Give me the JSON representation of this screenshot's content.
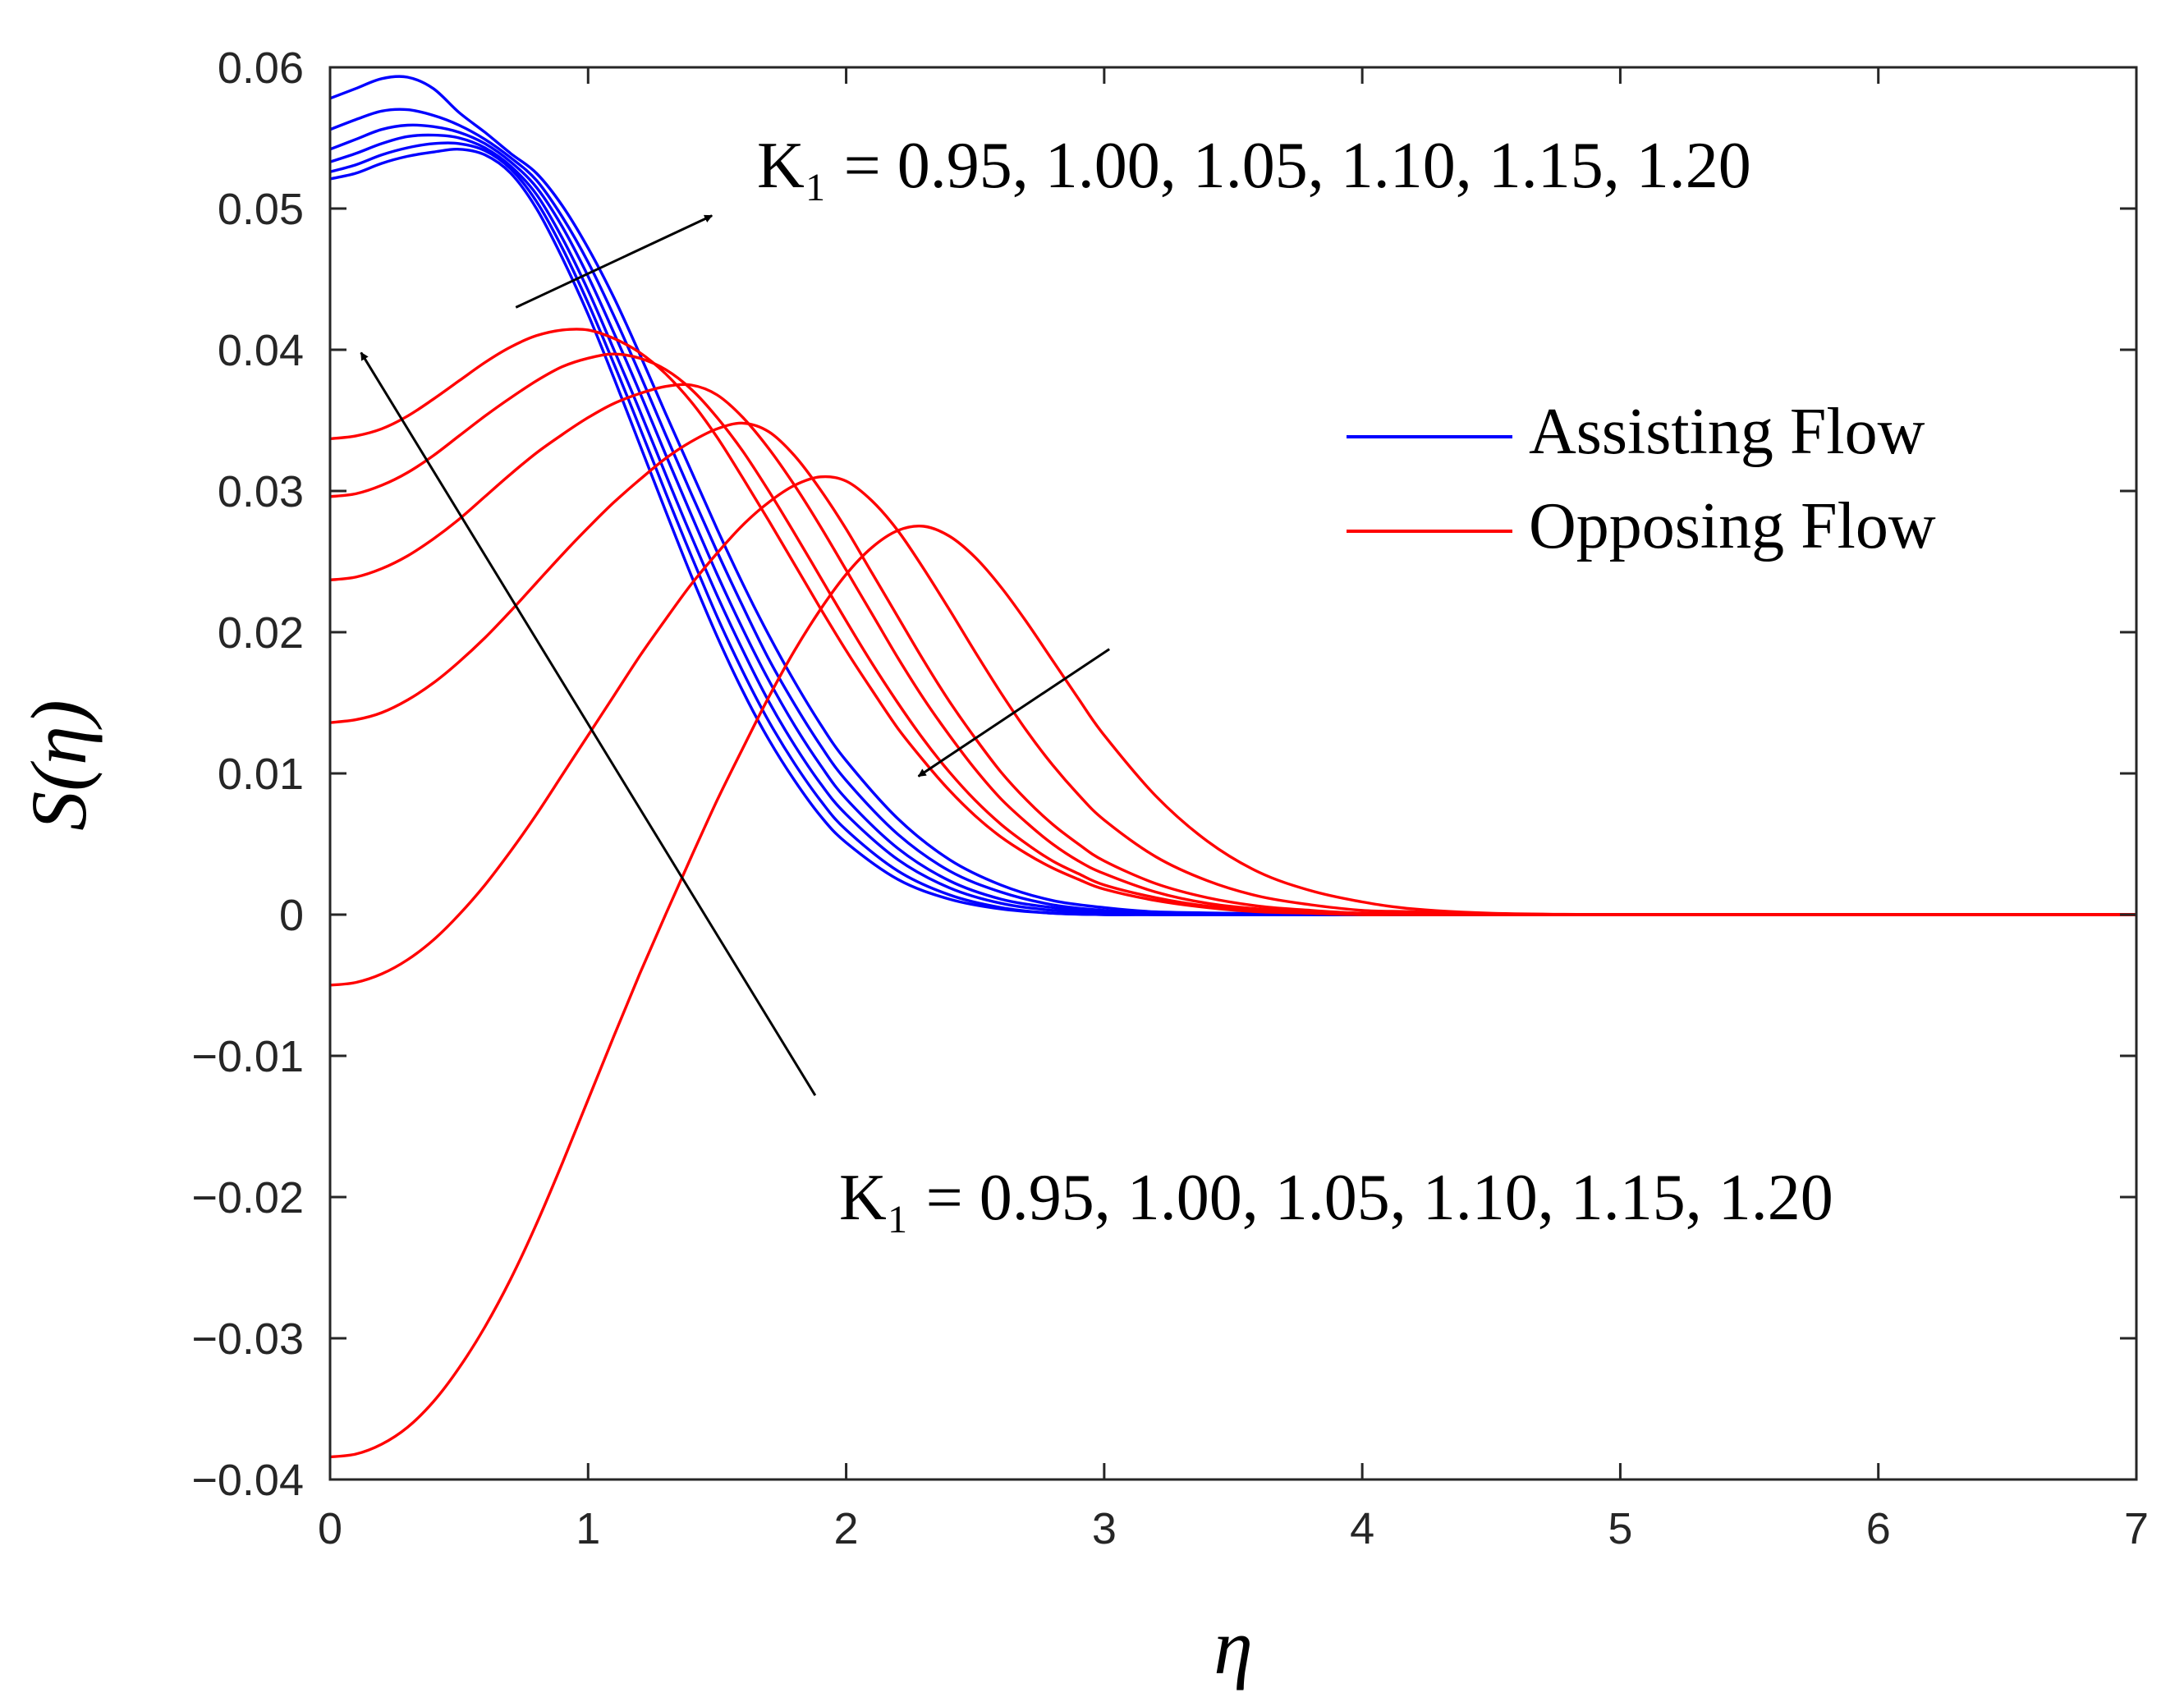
{
  "chart_data": {
    "type": "line",
    "xlabel": "η",
    "ylabel": "S(η)",
    "xlim": [
      0,
      7
    ],
    "ylim": [
      -0.04,
      0.06
    ],
    "xticks": [
      0,
      1,
      2,
      3,
      4,
      5,
      6,
      7
    ],
    "xtick_labels": [
      "0",
      "1",
      "2",
      "3",
      "4",
      "5",
      "6",
      "7"
    ],
    "yticks": [
      0.06,
      0.05,
      0.04,
      0.03,
      0.02,
      0.01,
      0,
      -0.01,
      -0.02,
      -0.03,
      -0.04
    ],
    "ytick_labels": [
      "0.06",
      "0.05",
      "0.04",
      "0.03",
      "0.02",
      "0.01",
      "0",
      "−0.01",
      "−0.02",
      "−0.03",
      "−0.04"
    ],
    "grid": false,
    "legend_position": "right",
    "legend": [
      {
        "label": "Assisting Flow",
        "color": "#0000ff"
      },
      {
        "label": "Opposing Flow",
        "color": "#ff0000"
      }
    ],
    "annotations": [
      {
        "text": "K₁ = 0.95, 1.00, 1.05, 1.10, 1.15, 1.20",
        "arrow_from": [
          0.72,
          0.043
        ],
        "arrow_to": [
          1.48,
          0.0495
        ],
        "refers_to": "Assisting Flow"
      },
      {
        "text": "K₁ = 0.95, 1.00, 1.05, 1.10, 1.15, 1.20",
        "arrow_from": [
          1.88,
          -0.0128
        ],
        "arrow_to": [
          0.12,
          0.0398
        ],
        "refers_to": "Opposing Flow"
      },
      {
        "text": "",
        "arrow_from": [
          3.02,
          0.0188
        ],
        "arrow_to": [
          2.28,
          0.0098
        ],
        "refers_to": "Opposing Flow"
      }
    ],
    "series": [
      {
        "name": "Assisting Flow, K1 = 0.95",
        "group": "assisting",
        "color": "#0000ff",
        "x": [
          0,
          0.1,
          0.2,
          0.3,
          0.4,
          0.5,
          0.6,
          0.7,
          0.8,
          0.9,
          1.0,
          1.1,
          1.2,
          1.3,
          1.4,
          1.5,
          1.6,
          1.7,
          1.8,
          1.9,
          2.0,
          2.2,
          2.4,
          2.6,
          2.8,
          3.0,
          3.2,
          3.5,
          4.0,
          4.5,
          5.0,
          6.0,
          7.0
        ],
        "y": [
          0.0521,
          0.0525,
          0.0532,
          0.0537,
          0.054,
          0.0542,
          0.0538,
          0.0525,
          0.05,
          0.0465,
          0.0425,
          0.038,
          0.0333,
          0.0286,
          0.024,
          0.0197,
          0.0158,
          0.0124,
          0.0095,
          0.007,
          0.0051,
          0.0025,
          0.0011,
          0.0004,
          0.0001,
          0,
          0,
          0,
          0,
          0,
          0,
          0,
          0
        ]
      },
      {
        "name": "Assisting Flow, K1 = 1.00",
        "group": "assisting",
        "color": "#0000ff",
        "x": [
          0,
          0.1,
          0.2,
          0.3,
          0.4,
          0.5,
          0.6,
          0.7,
          0.8,
          0.9,
          1.0,
          1.1,
          1.2,
          1.3,
          1.4,
          1.5,
          1.6,
          1.7,
          1.8,
          1.9,
          2.0,
          2.2,
          2.4,
          2.6,
          2.8,
          3.0,
          3.2,
          3.5,
          4.0,
          4.5,
          5.0,
          6.0,
          7.0
        ],
        "y": [
          0.0526,
          0.0531,
          0.0538,
          0.0543,
          0.0546,
          0.0546,
          0.0541,
          0.0528,
          0.0505,
          0.0472,
          0.0433,
          0.039,
          0.0345,
          0.0299,
          0.0254,
          0.0211,
          0.0172,
          0.0137,
          0.0107,
          0.0081,
          0.006,
          0.0031,
          0.0014,
          0.0005,
          0.0001,
          0,
          0,
          0,
          0,
          0,
          0,
          0,
          0
        ]
      },
      {
        "name": "Assisting Flow, K1 = 1.05",
        "group": "assisting",
        "color": "#0000ff",
        "x": [
          0,
          0.1,
          0.2,
          0.3,
          0.4,
          0.5,
          0.6,
          0.7,
          0.8,
          0.9,
          1.0,
          1.1,
          1.2,
          1.3,
          1.4,
          1.5,
          1.6,
          1.7,
          1.8,
          1.9,
          2.0,
          2.2,
          2.4,
          2.6,
          2.8,
          3.0,
          3.2,
          3.5,
          4.0,
          4.5,
          5.0,
          6.0,
          7.0
        ],
        "y": [
          0.0533,
          0.0539,
          0.0546,
          0.0551,
          0.0552,
          0.055,
          0.0543,
          0.053,
          0.051,
          0.0479,
          0.0442,
          0.04,
          0.0357,
          0.0312,
          0.0268,
          0.0226,
          0.0187,
          0.0151,
          0.012,
          0.0093,
          0.0071,
          0.0039,
          0.0019,
          0.0008,
          0.0003,
          0.0001,
          0,
          0,
          0,
          0,
          0,
          0,
          0
        ]
      },
      {
        "name": "Assisting Flow, K1 = 1.10",
        "group": "assisting",
        "color": "#0000ff",
        "x": [
          0,
          0.1,
          0.2,
          0.3,
          0.4,
          0.5,
          0.6,
          0.7,
          0.8,
          0.9,
          1.0,
          1.1,
          1.2,
          1.3,
          1.4,
          1.5,
          1.6,
          1.7,
          1.8,
          1.9,
          2.0,
          2.2,
          2.4,
          2.6,
          2.8,
          3.0,
          3.2,
          3.5,
          4.0,
          4.5,
          5.0,
          6.0,
          7.0
        ],
        "y": [
          0.0542,
          0.0549,
          0.0556,
          0.0559,
          0.0558,
          0.0554,
          0.0546,
          0.0533,
          0.0515,
          0.0487,
          0.0452,
          0.0412,
          0.037,
          0.0326,
          0.0283,
          0.0241,
          0.0202,
          0.0166,
          0.0134,
          0.0106,
          0.0082,
          0.0047,
          0.0024,
          0.0011,
          0.0005,
          0.0002,
          0.0001,
          0,
          0,
          0,
          0,
          0,
          0
        ]
      },
      {
        "name": "Assisting Flow, K1 = 1.15",
        "group": "assisting",
        "color": "#0000ff",
        "x": [
          0,
          0.1,
          0.2,
          0.3,
          0.4,
          0.5,
          0.6,
          0.7,
          0.8,
          0.9,
          1.0,
          1.1,
          1.2,
          1.3,
          1.4,
          1.5,
          1.6,
          1.7,
          1.8,
          1.9,
          2.0,
          2.2,
          2.4,
          2.6,
          2.8,
          3.0,
          3.2,
          3.5,
          4.0,
          4.5,
          5.0,
          6.0,
          7.0
        ],
        "y": [
          0.0556,
          0.0563,
          0.0569,
          0.057,
          0.0566,
          0.0559,
          0.0549,
          0.0536,
          0.052,
          0.0494,
          0.0462,
          0.0424,
          0.0383,
          0.034,
          0.0298,
          0.0257,
          0.0218,
          0.0181,
          0.0149,
          0.012,
          0.0095,
          0.0057,
          0.0031,
          0.0016,
          0.0007,
          0.0003,
          0.0001,
          0,
          0,
          0,
          0,
          0,
          0
        ]
      },
      {
        "name": "Assisting Flow, K1 = 1.20",
        "group": "assisting",
        "color": "#0000ff",
        "x": [
          0,
          0.1,
          0.2,
          0.3,
          0.4,
          0.5,
          0.6,
          0.7,
          0.8,
          0.9,
          1.0,
          1.1,
          1.2,
          1.3,
          1.4,
          1.5,
          1.6,
          1.7,
          1.8,
          1.9,
          2.0,
          2.2,
          2.4,
          2.6,
          2.8,
          3.0,
          3.2,
          3.5,
          4.0,
          4.5,
          5.0,
          6.0,
          7.0
        ],
        "y": [
          0.0578,
          0.0585,
          0.0592,
          0.0593,
          0.0585,
          0.0568,
          0.0554,
          0.0539,
          0.0525,
          0.0502,
          0.0472,
          0.0437,
          0.0397,
          0.0355,
          0.0314,
          0.0273,
          0.0234,
          0.0198,
          0.0165,
          0.0135,
          0.0109,
          0.0068,
          0.0039,
          0.0021,
          0.001,
          0.0005,
          0.0002,
          0.0001,
          0,
          0,
          0,
          0,
          0
        ]
      },
      {
        "name": "Opposing Flow, K1 = 0.95",
        "group": "opposing",
        "color": "#ff0000",
        "x": [
          0,
          0.1,
          0.2,
          0.3,
          0.4,
          0.5,
          0.6,
          0.7,
          0.8,
          0.9,
          1.0,
          1.1,
          1.2,
          1.3,
          1.4,
          1.5,
          1.6,
          1.7,
          1.8,
          1.9,
          2.0,
          2.1,
          2.2,
          2.3,
          2.4,
          2.5,
          2.6,
          2.7,
          2.8,
          2.9,
          3.0,
          3.2,
          3.4,
          3.6,
          3.8,
          4.0,
          4.2,
          4.5,
          5.0,
          6.0,
          7.0
        ],
        "y": [
          0.0337,
          0.0339,
          0.0344,
          0.0353,
          0.0365,
          0.0378,
          0.0391,
          0.0402,
          0.041,
          0.0414,
          0.0414,
          0.0408,
          0.0398,
          0.0383,
          0.0363,
          0.0338,
          0.0309,
          0.0279,
          0.0248,
          0.0217,
          0.0187,
          0.0159,
          0.0132,
          0.0109,
          0.0088,
          0.007,
          0.0055,
          0.0043,
          0.0033,
          0.0025,
          0.0018,
          0.001,
          0.0005,
          0.0002,
          0.0001,
          0,
          0,
          0,
          0,
          0,
          0
        ]
      },
      {
        "name": "Opposing Flow, K1 = 1.00",
        "group": "opposing",
        "color": "#ff0000",
        "x": [
          0,
          0.1,
          0.2,
          0.3,
          0.4,
          0.5,
          0.6,
          0.7,
          0.8,
          0.9,
          1.0,
          1.1,
          1.2,
          1.3,
          1.4,
          1.5,
          1.6,
          1.7,
          1.8,
          1.9,
          2.0,
          2.1,
          2.2,
          2.3,
          2.4,
          2.5,
          2.6,
          2.7,
          2.8,
          2.9,
          3.0,
          3.2,
          3.4,
          3.6,
          3.8,
          4.0,
          4.2,
          4.5,
          5.0,
          6.0,
          7.0
        ],
        "y": [
          0.0296,
          0.0298,
          0.0304,
          0.0313,
          0.0325,
          0.0339,
          0.0353,
          0.0366,
          0.0378,
          0.0388,
          0.0394,
          0.0397,
          0.0394,
          0.0386,
          0.0372,
          0.0352,
          0.0328,
          0.03,
          0.027,
          0.0239,
          0.0208,
          0.0178,
          0.015,
          0.0124,
          0.0101,
          0.0081,
          0.0064,
          0.005,
          0.0038,
          0.0029,
          0.0021,
          0.0012,
          0.0006,
          0.0003,
          0.0001,
          0,
          0,
          0,
          0,
          0,
          0
        ]
      },
      {
        "name": "Opposing Flow, K1 = 1.05",
        "group": "opposing",
        "color": "#ff0000",
        "x": [
          0,
          0.1,
          0.2,
          0.3,
          0.4,
          0.5,
          0.6,
          0.7,
          0.8,
          0.9,
          1.0,
          1.1,
          1.2,
          1.3,
          1.4,
          1.5,
          1.6,
          1.7,
          1.8,
          1.9,
          2.0,
          2.1,
          2.2,
          2.3,
          2.4,
          2.5,
          2.6,
          2.7,
          2.8,
          2.9,
          3.0,
          3.2,
          3.4,
          3.6,
          3.8,
          4.0,
          4.2,
          4.5,
          5.0,
          6.0,
          7.0
        ],
        "y": [
          0.0237,
          0.0239,
          0.0245,
          0.0254,
          0.0266,
          0.028,
          0.0296,
          0.0312,
          0.0327,
          0.034,
          0.0352,
          0.0362,
          0.0369,
          0.0374,
          0.0375,
          0.0368,
          0.0352,
          0.033,
          0.0304,
          0.0275,
          0.0244,
          0.0213,
          0.0182,
          0.0153,
          0.0127,
          0.0103,
          0.0082,
          0.0065,
          0.005,
          0.0038,
          0.0029,
          0.0016,
          0.0008,
          0.0004,
          0.0002,
          0.0001,
          0,
          0,
          0,
          0,
          0
        ]
      },
      {
        "name": "Opposing Flow, K1 = 1.10",
        "group": "opposing",
        "color": "#ff0000",
        "x": [
          0,
          0.1,
          0.2,
          0.3,
          0.4,
          0.5,
          0.6,
          0.7,
          0.8,
          0.9,
          1.0,
          1.1,
          1.2,
          1.3,
          1.4,
          1.5,
          1.6,
          1.7,
          1.8,
          1.9,
          2.0,
          2.1,
          2.2,
          2.3,
          2.4,
          2.5,
          2.6,
          2.7,
          2.8,
          2.9,
          3.0,
          3.2,
          3.4,
          3.6,
          3.8,
          4.0,
          4.2,
          4.5,
          5.0,
          6.0,
          7.0
        ],
        "y": [
          0.0136,
          0.0138,
          0.0143,
          0.0152,
          0.0164,
          0.0179,
          0.0196,
          0.0215,
          0.0235,
          0.0255,
          0.0274,
          0.0292,
          0.0308,
          0.0323,
          0.0335,
          0.0344,
          0.0348,
          0.0342,
          0.0325,
          0.0301,
          0.0273,
          0.0242,
          0.0211,
          0.018,
          0.0151,
          0.0125,
          0.0101,
          0.0081,
          0.0064,
          0.005,
          0.0038,
          0.0022,
          0.0012,
          0.0006,
          0.0003,
          0.0001,
          0.0001,
          0,
          0,
          0,
          0
        ]
      },
      {
        "name": "Opposing Flow, K1 = 1.15",
        "group": "opposing",
        "color": "#ff0000",
        "x": [
          0,
          0.1,
          0.2,
          0.3,
          0.4,
          0.5,
          0.6,
          0.7,
          0.8,
          0.9,
          1.0,
          1.1,
          1.2,
          1.3,
          1.4,
          1.5,
          1.6,
          1.7,
          1.8,
          1.9,
          2.0,
          2.1,
          2.2,
          2.3,
          2.4,
          2.5,
          2.6,
          2.7,
          2.8,
          2.9,
          3.0,
          3.2,
          3.4,
          3.6,
          3.8,
          4.0,
          4.2,
          4.5,
          5.0,
          6.0,
          7.0
        ],
        "y": [
          -0.005,
          -0.0048,
          -0.0042,
          -0.0032,
          -0.0018,
          0.0,
          0.0021,
          0.0045,
          0.0071,
          0.0099,
          0.0127,
          0.0155,
          0.0183,
          0.0209,
          0.0234,
          0.0256,
          0.0276,
          0.0292,
          0.0304,
          0.031,
          0.0307,
          0.0293,
          0.0272,
          0.0245,
          0.0216,
          0.0186,
          0.0157,
          0.013,
          0.0106,
          0.0085,
          0.0067,
          0.0041,
          0.0024,
          0.0013,
          0.0007,
          0.0003,
          0.0002,
          0,
          0,
          0,
          0
        ]
      },
      {
        "name": "Opposing Flow, K1 = 1.20",
        "group": "opposing",
        "color": "#ff0000",
        "x": [
          0,
          0.1,
          0.2,
          0.3,
          0.4,
          0.5,
          0.6,
          0.7,
          0.8,
          0.9,
          1.0,
          1.1,
          1.2,
          1.3,
          1.4,
          1.5,
          1.6,
          1.7,
          1.8,
          1.9,
          2.0,
          2.1,
          2.2,
          2.3,
          2.4,
          2.5,
          2.6,
          2.7,
          2.8,
          2.9,
          3.0,
          3.2,
          3.4,
          3.6,
          3.8,
          4.0,
          4.2,
          4.5,
          5.0,
          6.0,
          7.0
        ],
        "y": [
          -0.0384,
          -0.0382,
          -0.0375,
          -0.0363,
          -0.0345,
          -0.0321,
          -0.0292,
          -0.0258,
          -0.0219,
          -0.0176,
          -0.0131,
          -0.0086,
          -0.0042,
          0.0,
          0.0041,
          0.0081,
          0.0118,
          0.0154,
          0.0187,
          0.0216,
          0.0241,
          0.026,
          0.0272,
          0.0275,
          0.0268,
          0.0253,
          0.0232,
          0.0207,
          0.018,
          0.0153,
          0.0127,
          0.0084,
          0.0052,
          0.003,
          0.0017,
          0.0009,
          0.0004,
          0.0001,
          0,
          0,
          0
        ]
      }
    ]
  }
}
